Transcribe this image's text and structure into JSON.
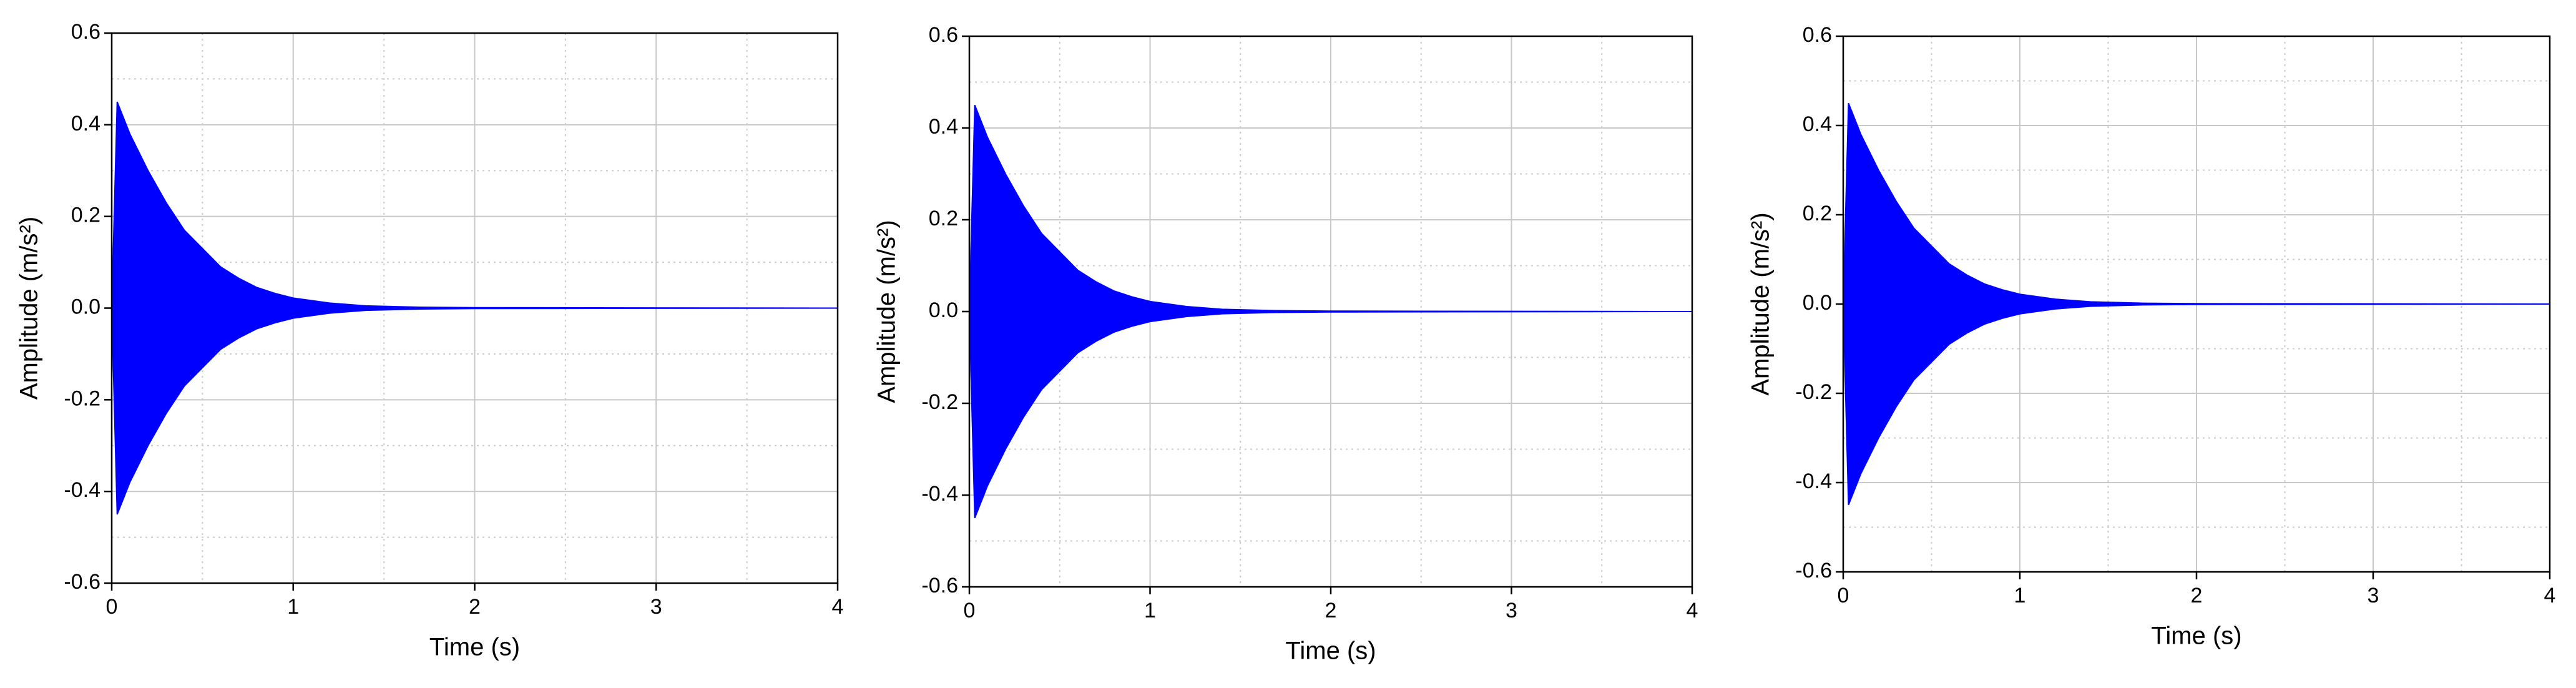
{
  "chart_data": [
    {
      "type": "area",
      "x_label": "Time (s)",
      "y_label": "Amplitude (m/s²)",
      "x": [
        0,
        0.03,
        0.1,
        0.2,
        0.3,
        0.4,
        0.5,
        0.6,
        0.7,
        0.8,
        0.9,
        1.0,
        1.2,
        1.4,
        1.7,
        2.0,
        4.0
      ],
      "series": [
        {
          "color": "#0000ff",
          "values": [
            0,
            0.45,
            0.38,
            0.3,
            0.23,
            0.17,
            0.13,
            0.09,
            0.065,
            0.045,
            0.032,
            0.022,
            0.011,
            0.005,
            0.002,
            0.001,
            0
          ]
        },
        {
          "color": "#0000ff",
          "values": [
            0,
            -0.45,
            -0.38,
            -0.3,
            -0.23,
            -0.17,
            -0.13,
            -0.09,
            -0.065,
            -0.045,
            -0.032,
            -0.022,
            -0.011,
            -0.005,
            -0.002,
            -0.001,
            0
          ]
        }
      ],
      "xlim": [
        0,
        4
      ],
      "xticks": [
        0,
        1,
        2,
        3,
        4
      ],
      "ylim": [
        -0.6,
        0.6
      ],
      "yticks": [
        -0.6,
        -0.4,
        -0.2,
        {
          "value": 0,
          "label": "0.0"
        },
        0.2,
        0.4,
        0.6
      ],
      "grid": true
    },
    {
      "type": "area",
      "x_label": "Time (s)",
      "y_label": "Amplitude (m/s²)",
      "x": [
        0,
        0.03,
        0.1,
        0.2,
        0.3,
        0.4,
        0.5,
        0.6,
        0.7,
        0.8,
        0.9,
        1.0,
        1.2,
        1.4,
        1.7,
        2.0,
        4.0
      ],
      "series": [
        {
          "color": "#0000ff",
          "values": [
            0,
            0.45,
            0.38,
            0.3,
            0.23,
            0.17,
            0.13,
            0.09,
            0.065,
            0.045,
            0.032,
            0.022,
            0.011,
            0.005,
            0.002,
            0.001,
            0
          ]
        },
        {
          "color": "#0000ff",
          "values": [
            0,
            -0.45,
            -0.38,
            -0.3,
            -0.23,
            -0.17,
            -0.13,
            -0.09,
            -0.065,
            -0.045,
            -0.032,
            -0.022,
            -0.011,
            -0.005,
            -0.002,
            -0.001,
            0
          ]
        }
      ],
      "xlim": [
        0,
        4
      ],
      "xticks": [
        0,
        1,
        2,
        3,
        4
      ],
      "ylim": [
        -0.6,
        0.6
      ],
      "yticks": [
        -0.6,
        -0.4,
        -0.2,
        {
          "value": 0,
          "label": "0.0"
        },
        0.2,
        0.4,
        0.6
      ],
      "grid": true
    },
    {
      "type": "area",
      "x_label": "Time (s)",
      "y_label": "Amplitude (m/s²)",
      "x": [
        0,
        0.03,
        0.1,
        0.2,
        0.3,
        0.4,
        0.5,
        0.6,
        0.7,
        0.8,
        0.9,
        1.0,
        1.2,
        1.4,
        1.7,
        2.0,
        4.0
      ],
      "series": [
        {
          "color": "#0000ff",
          "values": [
            0,
            0.45,
            0.38,
            0.3,
            0.23,
            0.17,
            0.13,
            0.09,
            0.065,
            0.045,
            0.032,
            0.022,
            0.011,
            0.005,
            0.002,
            0.001,
            0
          ]
        },
        {
          "color": "#0000ff",
          "values": [
            0,
            -0.45,
            -0.38,
            -0.3,
            -0.23,
            -0.17,
            -0.13,
            -0.09,
            -0.065,
            -0.045,
            -0.032,
            -0.022,
            -0.011,
            -0.005,
            -0.002,
            -0.001,
            0
          ]
        }
      ],
      "xlim": [
        0,
        4
      ],
      "xticks": [
        0,
        1,
        2,
        3,
        4
      ],
      "ylim": [
        -0.6,
        0.6
      ],
      "yticks": [
        -0.6,
        -0.4,
        -0.2,
        {
          "value": 0,
          "label": "0.0"
        },
        0.2,
        0.4,
        0.6
      ],
      "grid": true
    }
  ]
}
